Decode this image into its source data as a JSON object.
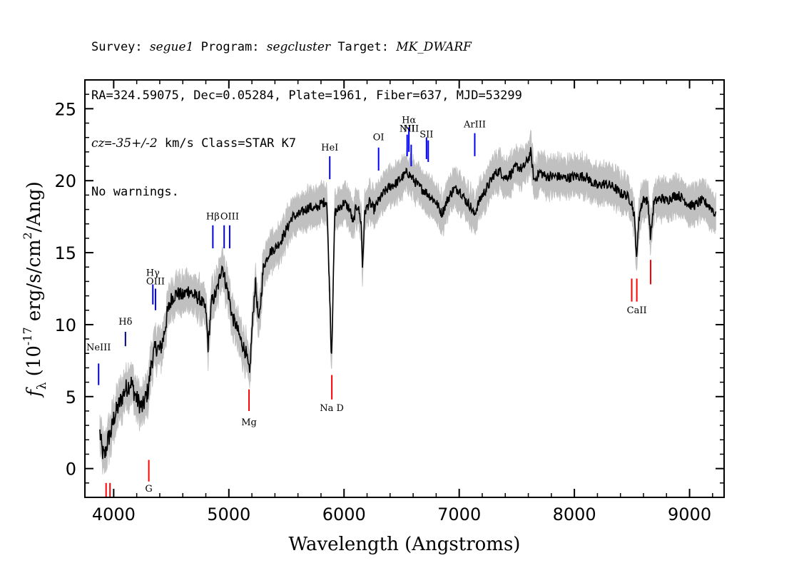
{
  "header": {
    "line1": {
      "survey_label": "Survey: ",
      "survey": "segue1",
      "program_label": " Program: ",
      "program": "segcluster",
      "target_label": " Target: ",
      "target": "MK_DWARF"
    },
    "line2": "RA=324.59075, Dec=0.05284, Plate=1961, Fiber=637, MJD=53299",
    "line3": {
      "cz_label": "cz",
      "cz_eq": "=",
      "cz": "-35+/-2",
      "rest": " km/s Class=STAR K7"
    },
    "line4": "No warnings."
  },
  "chart_data": {
    "type": "line",
    "xlabel": "Wavelength (Angstroms)",
    "ylabel_symbol": "f",
    "ylabel_sub": "λ",
    "ylabel_unit": "(10",
    "ylabel_exp": "-17",
    "ylabel_unit2": " erg/s/cm",
    "ylabel_exp2": "2",
    "ylabel_unit3": "/Ang)",
    "xlim": [
      3750,
      9300
    ],
    "ylim": [
      -2,
      27
    ],
    "x_ticks": [
      4000,
      5000,
      6000,
      7000,
      8000,
      9000
    ],
    "y_ticks": [
      0,
      5,
      10,
      15,
      20,
      25
    ],
    "x_tick_labels": [
      "4000",
      "5000",
      "6000",
      "7000",
      "8000",
      "9000"
    ],
    "y_tick_labels": [
      "0",
      "5",
      "10",
      "15",
      "20",
      "25"
    ],
    "series": [
      {
        "color": "#000000",
        "error_color": "#c0c0c0",
        "points": [
          [
            3880,
            2.5
          ],
          [
            3900,
            1.2
          ],
          [
            3920,
            0.8
          ],
          [
            3950,
            2.0
          ],
          [
            3980,
            2.6
          ],
          [
            4000,
            3.5
          ],
          [
            4050,
            4.5
          ],
          [
            4100,
            5.5
          ],
          [
            4150,
            6.0
          ],
          [
            4200,
            4.8
          ],
          [
            4250,
            4.2
          ],
          [
            4300,
            5.5
          ],
          [
            4330,
            7.5
          ],
          [
            4370,
            8.5
          ],
          [
            4400,
            8.2
          ],
          [
            4430,
            9.0
          ],
          [
            4460,
            10.5
          ],
          [
            4500,
            11.8
          ],
          [
            4550,
            12.2
          ],
          [
            4600,
            12.0
          ],
          [
            4650,
            12.4
          ],
          [
            4700,
            12.0
          ],
          [
            4750,
            11.8
          ],
          [
            4800,
            11.0
          ],
          [
            4820,
            8.5
          ],
          [
            4850,
            11.6
          ],
          [
            4880,
            12.0
          ],
          [
            4910,
            12.8
          ],
          [
            4940,
            14.2
          ],
          [
            4970,
            13.0
          ],
          [
            5000,
            12.0
          ],
          [
            5030,
            10.5
          ],
          [
            5060,
            10.0
          ],
          [
            5100,
            9.0
          ],
          [
            5150,
            8.0
          ],
          [
            5180,
            6.5
          ],
          [
            5200,
            9.5
          ],
          [
            5230,
            13.0
          ],
          [
            5260,
            10.0
          ],
          [
            5300,
            14.0
          ],
          [
            5350,
            15.0
          ],
          [
            5400,
            15.3
          ],
          [
            5450,
            15.8
          ],
          [
            5500,
            16.6
          ],
          [
            5550,
            17.5
          ],
          [
            5600,
            17.6
          ],
          [
            5650,
            17.9
          ],
          [
            5700,
            18.2
          ],
          [
            5750,
            18.0
          ],
          [
            5800,
            18.4
          ],
          [
            5850,
            18.6
          ],
          [
            5880,
            11.0
          ],
          [
            5890,
            7.5
          ],
          [
            5900,
            10.5
          ],
          [
            5920,
            17.8
          ],
          [
            5950,
            18.0
          ],
          [
            6000,
            18.5
          ],
          [
            6050,
            18.0
          ],
          [
            6080,
            17.0
          ],
          [
            6100,
            18.0
          ],
          [
            6120,
            18.3
          ],
          [
            6150,
            17.0
          ],
          [
            6160,
            14.0
          ],
          [
            6180,
            17.8
          ],
          [
            6220,
            18.5
          ],
          [
            6260,
            18.0
          ],
          [
            6300,
            18.6
          ],
          [
            6350,
            19.2
          ],
          [
            6400,
            19.6
          ],
          [
            6450,
            19.8
          ],
          [
            6500,
            20.2
          ],
          [
            6550,
            20.6
          ],
          [
            6600,
            20.1
          ],
          [
            6650,
            19.6
          ],
          [
            6700,
            19.3
          ],
          [
            6750,
            18.9
          ],
          [
            6800,
            18.5
          ],
          [
            6850,
            17.7
          ],
          [
            6900,
            18.7
          ],
          [
            6950,
            19.4
          ],
          [
            7000,
            19.4
          ],
          [
            7050,
            18.7
          ],
          [
            7100,
            18.2
          ],
          [
            7130,
            17.6
          ],
          [
            7160,
            18.3
          ],
          [
            7200,
            19.0
          ],
          [
            7250,
            19.6
          ],
          [
            7300,
            20.4
          ],
          [
            7350,
            20.7
          ],
          [
            7400,
            20.2
          ],
          [
            7450,
            20.5
          ],
          [
            7500,
            21.0
          ],
          [
            7550,
            20.8
          ],
          [
            7600,
            21.5
          ],
          [
            7620,
            22.0
          ],
          [
            7650,
            20.0
          ],
          [
            7700,
            20.6
          ],
          [
            7750,
            20.3
          ],
          [
            7800,
            20.3
          ],
          [
            7850,
            20.3
          ],
          [
            7900,
            20.2
          ],
          [
            7950,
            20.2
          ],
          [
            8000,
            20.3
          ],
          [
            8050,
            20.3
          ],
          [
            8100,
            20.3
          ],
          [
            8150,
            19.9
          ],
          [
            8200,
            19.6
          ],
          [
            8250,
            19.8
          ],
          [
            8300,
            19.7
          ],
          [
            8350,
            19.5
          ],
          [
            8400,
            19.1
          ],
          [
            8450,
            19.0
          ],
          [
            8498,
            18.5
          ],
          [
            8520,
            17.5
          ],
          [
            8542,
            14.5
          ],
          [
            8560,
            17.5
          ],
          [
            8600,
            18.8
          ],
          [
            8640,
            18.5
          ],
          [
            8662,
            16.0
          ],
          [
            8690,
            18.5
          ],
          [
            8750,
            18.8
          ],
          [
            8800,
            18.6
          ],
          [
            8850,
            18.9
          ],
          [
            8900,
            19.0
          ],
          [
            8950,
            18.7
          ],
          [
            9000,
            18.3
          ],
          [
            9050,
            18.3
          ],
          [
            9100,
            18.6
          ],
          [
            9150,
            18.4
          ],
          [
            9200,
            18.0
          ],
          [
            9230,
            17.5
          ]
        ]
      }
    ],
    "lines": [
      {
        "label": "NeIII",
        "x": 3869,
        "y1": 5.8,
        "y2": 7.3,
        "label_y": 8.2,
        "color": "#0000ff"
      },
      {
        "label": "Hδ",
        "x": 4102,
        "y1": 8.5,
        "y2": 9.5,
        "label_y": 10.0,
        "color": "#000080"
      },
      {
        "label": "Hγ",
        "x": 4340,
        "y1": 11.4,
        "y2": 12.8,
        "label_y": 13.4,
        "color": "#0000ff"
      },
      {
        "label": "OIII",
        "x": 4363,
        "y1": 11.0,
        "y2": 12.5,
        "label_y": 12.8,
        "color": "#0000ff"
      },
      {
        "label": "Hβ",
        "x": 4861,
        "y1": 15.3,
        "y2": 16.9,
        "label_y": 17.3,
        "color": "#0000ff"
      },
      {
        "label": "",
        "x": 4959,
        "y1": 15.3,
        "y2": 16.9,
        "label_y": 0,
        "color": "#0000ff"
      },
      {
        "label": "OIII",
        "x": 5007,
        "y1": 15.3,
        "y2": 16.9,
        "label_y": 17.3,
        "color": "#0000ff"
      },
      {
        "label": "HeI",
        "x": 5876,
        "y1": 20.1,
        "y2": 21.7,
        "label_y": 22.1,
        "color": "#0000ff"
      },
      {
        "label": "OI",
        "x": 6300,
        "y1": 20.7,
        "y2": 22.3,
        "label_y": 22.8,
        "color": "#0000ff"
      },
      {
        "label": "NII",
        "x": 6548,
        "y1": 21.7,
        "y2": 23.2,
        "label_y": 23.4,
        "color": "#0000ff"
      },
      {
        "label": "Hα",
        "x": 6563,
        "y1": 22.0,
        "y2": 23.7,
        "label_y": 24.0,
        "color": "#0000ff"
      },
      {
        "label": "NII",
        "x": 6583,
        "y1": 21.0,
        "y2": 22.5,
        "label_y": 23.4,
        "color": "#0000ff"
      },
      {
        "label": "SII",
        "x": 6716,
        "y1": 21.5,
        "y2": 23.0,
        "label_y": 23.0,
        "color": "#0000ff"
      },
      {
        "label": "",
        "x": 6731,
        "y1": 21.3,
        "y2": 22.8,
        "label_y": 0,
        "color": "#0000ff"
      },
      {
        "label": "ArIII",
        "x": 7135,
        "y1": 21.7,
        "y2": 23.3,
        "label_y": 23.7,
        "color": "#0000ff"
      },
      {
        "label": "G",
        "x": 4305,
        "y1": -0.9,
        "y2": 0.6,
        "label_y": -1.6,
        "color": "#ff0000"
      },
      {
        "label": "",
        "x": 3934,
        "y1": -2.3,
        "y2": -1.0,
        "label_y": 0,
        "color": "#ff0000"
      },
      {
        "label": "",
        "x": 3968,
        "y1": -2.3,
        "y2": -1.0,
        "label_y": 0,
        "color": "#ff0000"
      },
      {
        "label": "Mg",
        "x": 5175,
        "y1": 4.0,
        "y2": 5.5,
        "label_y": 3.0,
        "color": "#ff0000"
      },
      {
        "label": "Na D",
        "x": 5894,
        "y1": 4.8,
        "y2": 6.5,
        "label_y": 4.0,
        "color": "#ff0000"
      },
      {
        "label": "",
        "x": 8498,
        "y1": 11.6,
        "y2": 13.2,
        "label_y": 0,
        "color": "#ff0000"
      },
      {
        "label": "CaII",
        "x": 8542,
        "y1": 11.6,
        "y2": 13.2,
        "label_y": 10.8,
        "color": "#ff0000"
      },
      {
        "label": "",
        "x": 8662,
        "y1": 12.8,
        "y2": 14.5,
        "label_y": 0,
        "color": "#ff0000"
      }
    ]
  }
}
